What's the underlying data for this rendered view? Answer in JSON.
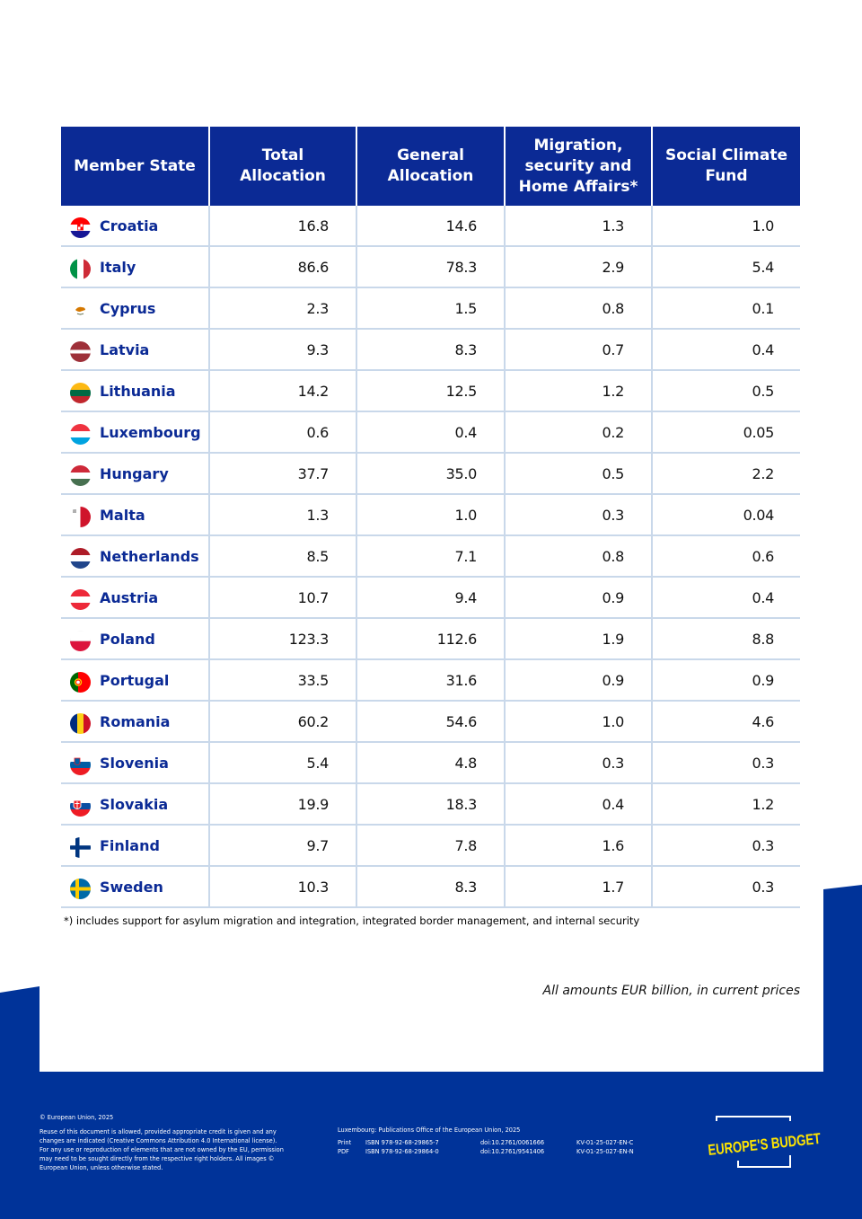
{
  "table": {
    "headers": [
      "Member State",
      "Total\nAllocation",
      "General\nAllocation",
      "Migration,\nsecurity and\nHome Affairs*",
      "Social Climate\nFund"
    ],
    "rows": [
      {
        "state": "Croatia",
        "flag": "croatia-flag",
        "total": "16.8",
        "general": "14.6",
        "migration": "1.3",
        "climate": "1.0"
      },
      {
        "state": "Italy",
        "flag": "italy-flag",
        "total": "86.6",
        "general": "78.3",
        "migration": "2.9",
        "climate": "5.4"
      },
      {
        "state": "Cyprus",
        "flag": "cyprus-flag",
        "total": "2.3",
        "general": "1.5",
        "migration": "0.8",
        "climate": "0.1"
      },
      {
        "state": "Latvia",
        "flag": "latvia-flag",
        "total": "9.3",
        "general": "8.3",
        "migration": "0.7",
        "climate": "0.4"
      },
      {
        "state": "Lithuania",
        "flag": "lithuania-flag",
        "total": "14.2",
        "general": "12.5",
        "migration": "1.2",
        "climate": "0.5"
      },
      {
        "state": "Luxembourg",
        "flag": "luxembourg-flag",
        "total": "0.6",
        "general": "0.4",
        "migration": "0.2",
        "climate": "0.05"
      },
      {
        "state": "Hungary",
        "flag": "hungary-flag",
        "total": "37.7",
        "general": "35.0",
        "migration": "0.5",
        "climate": "2.2"
      },
      {
        "state": "Malta",
        "flag": "malta-flag",
        "total": "1.3",
        "general": "1.0",
        "migration": "0.3",
        "climate": "0.04"
      },
      {
        "state": "Netherlands",
        "flag": "netherlands-flag",
        "total": "8.5",
        "general": "7.1",
        "migration": "0.8",
        "climate": "0.6"
      },
      {
        "state": "Austria",
        "flag": "austria-flag",
        "total": "10.7",
        "general": "9.4",
        "migration": "0.9",
        "climate": "0.4"
      },
      {
        "state": "Poland",
        "flag": "poland-flag",
        "total": "123.3",
        "general": "112.6",
        "migration": "1.9",
        "climate": "8.8"
      },
      {
        "state": "Portugal",
        "flag": "portugal-flag",
        "total": "33.5",
        "general": "31.6",
        "migration": "0.9",
        "climate": "0.9"
      },
      {
        "state": "Romania",
        "flag": "romania-flag",
        "total": "60.2",
        "general": "54.6",
        "migration": "1.0",
        "climate": "4.6"
      },
      {
        "state": "Slovenia",
        "flag": "slovenia-flag",
        "total": "5.4",
        "general": "4.8",
        "migration": "0.3",
        "climate": "0.3"
      },
      {
        "state": "Slovakia",
        "flag": "slovakia-flag",
        "total": "19.9",
        "general": "18.3",
        "migration": "0.4",
        "climate": "1.2"
      },
      {
        "state": "Finland",
        "flag": "finland-flag",
        "total": "9.7",
        "general": "7.8",
        "migration": "1.6",
        "climate": "0.3"
      },
      {
        "state": "Sweden",
        "flag": "sweden-flag",
        "total": "10.3",
        "general": "8.3",
        "migration": "1.7",
        "climate": "0.3"
      }
    ]
  },
  "footnote": "*) includes support for asylum migration and integration, integrated border management, and internal security",
  "amounts_note": "All amounts EUR billion, in current prices",
  "footer": {
    "copyright": "© European Union, 2025",
    "reuse_lines": [
      "Reuse of this document is allowed, provided appropriate credit is given and any",
      "changes are indicated (Creative Commons Attribution 4.0 International license).",
      "For any use or reproduction of elements that are not owned by the EU, permission",
      "may need to be sought directly from the respective right holders. All images ©",
      "European Union, unless otherwise stated."
    ],
    "publisher": "Luxembourg: Publications Office of the European Union, 2025",
    "print": {
      "label": "Print",
      "isbn": "ISBN 978-92-68-29865-7",
      "doi": "doi:10.2761/0061666",
      "catalogue": "KV-01-25-027-EN-C"
    },
    "pdf": {
      "label": "PDF",
      "isbn": "ISBN 978-92-68-29864-0",
      "doi": "doi:10.2761/9541406",
      "catalogue": "KV-01-25-027-EN-N"
    },
    "logo_text": "EUROPE'S BUDGET"
  },
  "colors": {
    "brand_blue": "#0b2a95",
    "footer_blue": "#003399",
    "logo_yellow": "#ffe500",
    "row_border": "#c9d8ea"
  }
}
